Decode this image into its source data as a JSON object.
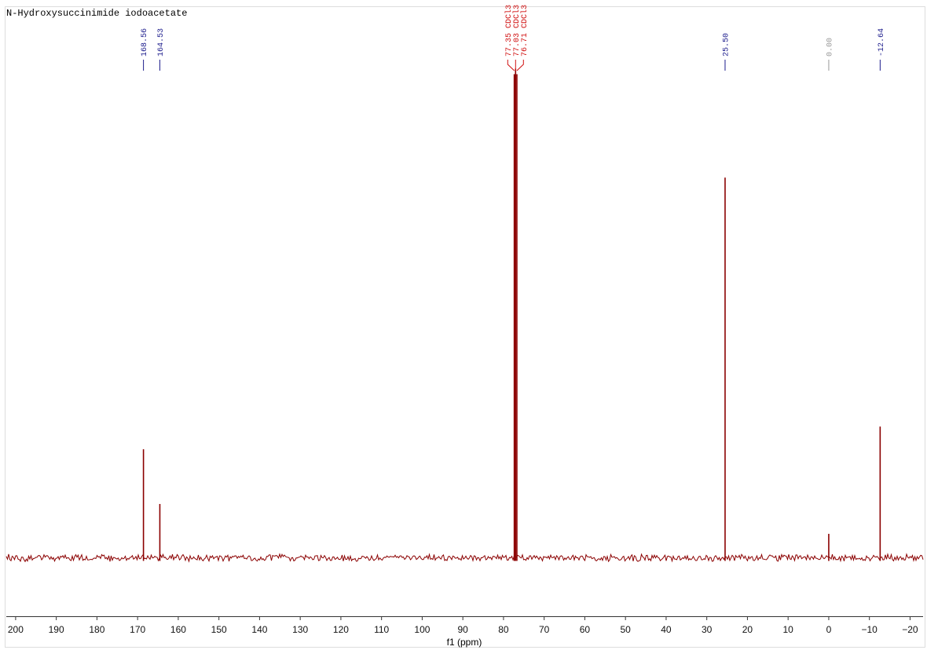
{
  "chart_data": {
    "type": "spectrum",
    "title": "N-Hydroxysuccinimide iodoacetate",
    "x_label": "f1 (ppm)",
    "xlim": [
      202.3,
      -23.2
    ],
    "ylim": [
      -10,
      100
    ],
    "xticks": [
      200,
      190,
      180,
      170,
      160,
      150,
      140,
      130,
      120,
      110,
      100,
      90,
      80,
      70,
      60,
      50,
      40,
      30,
      20,
      10,
      0,
      {
        "value": -10,
        "label": "−10"
      },
      {
        "value": -20,
        "label": "−20"
      }
    ],
    "line_color": "#8b0000",
    "peaks": [
      {
        "position": 168.56,
        "label": "168.56",
        "height": 20.2,
        "color": "#1c1c8c"
      },
      {
        "position": 164.53,
        "label": "164.53",
        "height": 10.3,
        "color": "#1c1c8c"
      },
      {
        "position": 77.35,
        "label": "77.35 CDCl3",
        "height": 88,
        "color": "#d01010"
      },
      {
        "position": 77.03,
        "label": "77.03 CDCl3",
        "height": 89,
        "color": "#d01010"
      },
      {
        "position": 76.71,
        "label": "76.71 CDCl3",
        "height": 88,
        "color": "#d01010"
      },
      {
        "position": 25.5,
        "label": "25.50",
        "height": 69.3,
        "color": "#1c1c8c"
      },
      {
        "position": 0.0,
        "label": "0.00",
        "height": 4.9,
        "color": "#999999"
      },
      {
        "position": -12.64,
        "label": "-12.64",
        "height": 24.3,
        "color": "#1c1c8c"
      }
    ]
  }
}
